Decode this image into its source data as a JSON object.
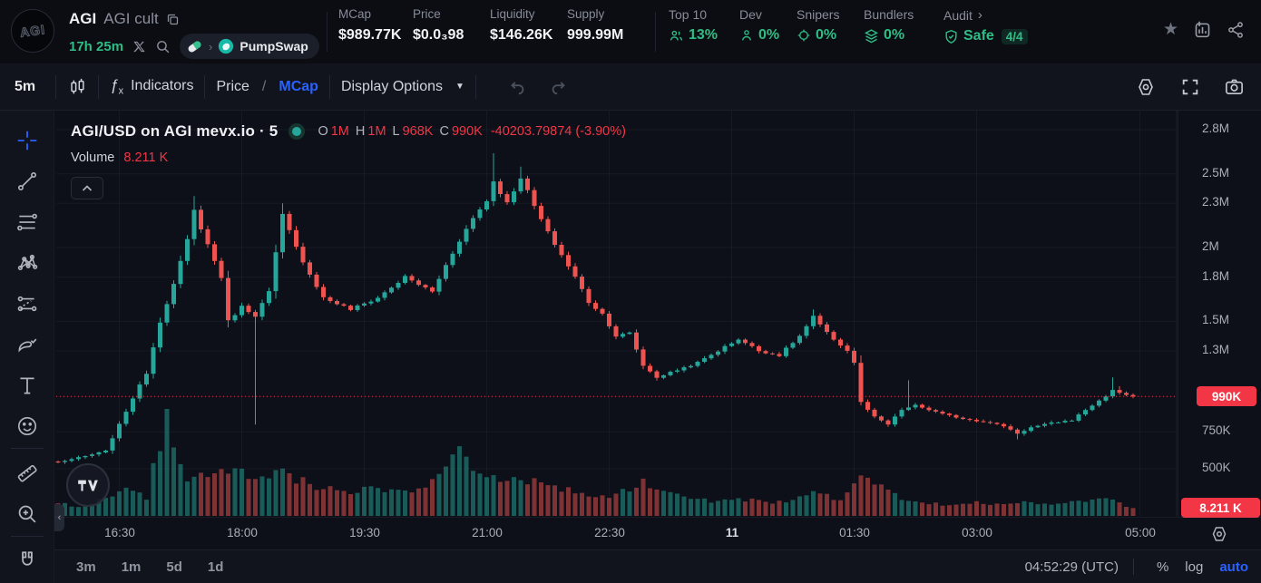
{
  "colors": {
    "accent_blue": "#2962ff",
    "green": "#2ebd85",
    "candle_up": "#26a69a",
    "candle_down": "#ef5350",
    "badge_red": "#f23645",
    "axis_text": "#a9aeb8"
  },
  "header": {
    "token_symbol": "AGI",
    "token_name": "AGI cult",
    "age": "17h 25m",
    "dex_name": "PumpSwap",
    "stats": [
      {
        "label": "MCap",
        "value": "$989.77K"
      },
      {
        "label": "Price",
        "value": "$0.0₃98"
      },
      {
        "label": "Liquidity",
        "value": "$146.26K"
      },
      {
        "label": "Supply",
        "value": "999.99M"
      }
    ],
    "metrics": [
      {
        "label": "Top 10",
        "value": "13%",
        "icon": "people-icon"
      },
      {
        "label": "Dev",
        "value": "0%",
        "icon": "person-icon"
      },
      {
        "label": "Snipers",
        "value": "0%",
        "icon": "crosshair-scope-icon"
      },
      {
        "label": "Bundlers",
        "value": "0%",
        "icon": "layers-icon"
      },
      {
        "label": "Audit",
        "value": "Safe",
        "badge": "4/4",
        "icon": "shield-check-icon",
        "chevron": "›"
      }
    ]
  },
  "toolbar": {
    "timeframe": "5m",
    "fx": {
      "f": "ƒ",
      "x": "x"
    },
    "indicators_label": "Indicators",
    "price_label": "Price",
    "scale_separator": "/",
    "mcap_label": "MCap",
    "display_options_label": "Display Options",
    "caret": "▼"
  },
  "sidebar": {
    "active_tool": "crosshair-icon",
    "groups": [
      [
        "crosshair-icon",
        "trendline-icon",
        "fib-retracement-icon",
        "xabcd-pattern-icon",
        "projection-icon",
        "brush-icon",
        "text-icon",
        "emoji-icon"
      ],
      [
        "ruler-icon",
        "zoom-in-icon"
      ],
      [
        "magnet-icon"
      ]
    ]
  },
  "chart": {
    "legend_title": "AGI/USD on AGI mevx.io · 5",
    "ohlc": {
      "o_label": "O",
      "o_value": "1M",
      "h_label": "H",
      "h_value": "1M",
      "l_label": "L",
      "l_value": "968K",
      "c_label": "C",
      "c_value": "990K",
      "change_value": "-40203.79874 (-3.90%)"
    },
    "volume_label": "Volume",
    "volume_value": "8.211 K",
    "price_line_label": "990K",
    "left_tab_glyph": "‹"
  },
  "chart_data": {
    "type": "candlestick_with_volume",
    "symbol": "AGI/USD",
    "venue": "AGI mevx.io",
    "interval_minutes": 5,
    "candle_count": 159,
    "last_price": 990000,
    "last_price_label": "990K",
    "current_volume_label": "8.211 K",
    "y_ticks": [
      {
        "label": "2.8M",
        "value": 2800000
      },
      {
        "label": "2.5M",
        "value": 2500000
      },
      {
        "label": "2.3M",
        "value": 2300000
      },
      {
        "label": "2M",
        "value": 2000000
      },
      {
        "label": "1.8M",
        "value": 1800000
      },
      {
        "label": "1.5M",
        "value": 1500000
      },
      {
        "label": "1.3M",
        "value": 1300000
      },
      {
        "label": "990K",
        "value": 990000
      },
      {
        "label": "750K",
        "value": 750000
      },
      {
        "label": "500K",
        "value": 500000
      }
    ],
    "x_ticks": [
      {
        "label": "16:30",
        "index": 9
      },
      {
        "label": "18:00",
        "index": 27
      },
      {
        "label": "19:30",
        "index": 45
      },
      {
        "label": "21:00",
        "index": 63
      },
      {
        "label": "22:30",
        "index": 81
      },
      {
        "label": "11",
        "index": 99,
        "emphasis": true
      },
      {
        "label": "01:30",
        "index": 117
      },
      {
        "label": "03:00",
        "index": 135
      },
      {
        "label": "05:00",
        "index": 159
      }
    ],
    "close_waypoints": [
      [
        0,
        545000
      ],
      [
        4,
        585000
      ],
      [
        7,
        620000
      ],
      [
        9,
        800000
      ],
      [
        11,
        980000
      ],
      [
        13,
        1150000
      ],
      [
        15,
        1500000
      ],
      [
        17,
        1750000
      ],
      [
        19,
        2050000
      ],
      [
        20,
        2250000
      ],
      [
        22,
        2020000
      ],
      [
        24,
        1800000
      ],
      [
        25,
        1500000
      ],
      [
        27,
        1600000
      ],
      [
        29,
        1540000
      ],
      [
        31,
        1700000
      ],
      [
        33,
        2220000
      ],
      [
        35,
        2000000
      ],
      [
        37,
        1820000
      ],
      [
        39,
        1660000
      ],
      [
        43,
        1580000
      ],
      [
        47,
        1660000
      ],
      [
        51,
        1800000
      ],
      [
        55,
        1700000
      ],
      [
        57,
        1880000
      ],
      [
        59,
        2050000
      ],
      [
        61,
        2200000
      ],
      [
        63,
        2320000
      ],
      [
        64,
        2450000
      ],
      [
        66,
        2300000
      ],
      [
        68,
        2480000
      ],
      [
        70,
        2280000
      ],
      [
        72,
        2100000
      ],
      [
        74,
        1950000
      ],
      [
        76,
        1800000
      ],
      [
        78,
        1630000
      ],
      [
        80,
        1550000
      ],
      [
        82,
        1400000
      ],
      [
        84,
        1420000
      ],
      [
        86,
        1200000
      ],
      [
        88,
        1120000
      ],
      [
        91,
        1170000
      ],
      [
        94,
        1220000
      ],
      [
        97,
        1300000
      ],
      [
        100,
        1380000
      ],
      [
        103,
        1300000
      ],
      [
        106,
        1270000
      ],
      [
        109,
        1400000
      ],
      [
        111,
        1530000
      ],
      [
        113,
        1420000
      ],
      [
        116,
        1300000
      ],
      [
        117,
        1220000
      ],
      [
        118,
        950000
      ],
      [
        120,
        850000
      ],
      [
        122,
        800000
      ],
      [
        124,
        900000
      ],
      [
        126,
        930000
      ],
      [
        128,
        900000
      ],
      [
        130,
        870000
      ],
      [
        133,
        840000
      ],
      [
        136,
        820000
      ],
      [
        139,
        790000
      ],
      [
        141,
        740000
      ],
      [
        143,
        780000
      ],
      [
        146,
        810000
      ],
      [
        149,
        830000
      ],
      [
        151,
        900000
      ],
      [
        153,
        960000
      ],
      [
        155,
        1030000
      ],
      [
        158,
        990000
      ]
    ],
    "wick_highs": [
      [
        20,
        2350000
      ],
      [
        33,
        2300000
      ],
      [
        64,
        2640000
      ],
      [
        68,
        2550000
      ],
      [
        111,
        1580000
      ],
      [
        125,
        1100000
      ],
      [
        155,
        1120000
      ],
      [
        156,
        1060000
      ]
    ],
    "wick_lows": [
      [
        29,
        800000
      ],
      [
        118,
        930000
      ],
      [
        141,
        700000
      ]
    ],
    "volume_waypoints": [
      [
        0,
        0.12
      ],
      [
        4,
        0.09
      ],
      [
        8,
        0.22
      ],
      [
        11,
        0.27
      ],
      [
        13,
        0.18
      ],
      [
        16,
        1.0
      ],
      [
        19,
        0.38
      ],
      [
        23,
        0.42
      ],
      [
        27,
        0.46
      ],
      [
        29,
        0.36
      ],
      [
        33,
        0.42
      ],
      [
        37,
        0.32
      ],
      [
        39,
        0.27
      ],
      [
        43,
        0.23
      ],
      [
        47,
        0.27
      ],
      [
        51,
        0.23
      ],
      [
        55,
        0.32
      ],
      [
        57,
        0.55
      ],
      [
        59,
        0.6
      ],
      [
        61,
        0.42
      ],
      [
        63,
        0.38
      ],
      [
        65,
        0.32
      ],
      [
        67,
        0.42
      ],
      [
        69,
        0.36
      ],
      [
        71,
        0.32
      ],
      [
        74,
        0.27
      ],
      [
        77,
        0.23
      ],
      [
        81,
        0.18
      ],
      [
        84,
        0.27
      ],
      [
        86,
        0.36
      ],
      [
        89,
        0.23
      ],
      [
        93,
        0.16
      ],
      [
        97,
        0.14
      ],
      [
        101,
        0.16
      ],
      [
        105,
        0.13
      ],
      [
        109,
        0.18
      ],
      [
        112,
        0.23
      ],
      [
        115,
        0.16
      ],
      [
        118,
        0.42
      ],
      [
        121,
        0.27
      ],
      [
        124,
        0.18
      ],
      [
        127,
        0.14
      ],
      [
        131,
        0.11
      ],
      [
        135,
        0.13
      ],
      [
        139,
        0.11
      ],
      [
        143,
        0.14
      ],
      [
        147,
        0.11
      ],
      [
        151,
        0.16
      ],
      [
        154,
        0.18
      ],
      [
        158,
        0.07
      ]
    ]
  },
  "bottom_bar": {
    "ranges": [
      "3m",
      "1m",
      "5d",
      "1d"
    ],
    "clock": "04:52:29 (UTC)",
    "percent_label": "%",
    "log_label": "log",
    "auto_label": "auto"
  }
}
